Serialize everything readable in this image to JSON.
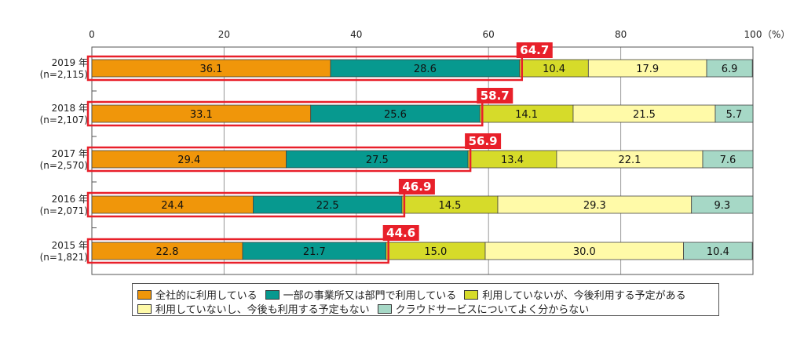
{
  "chart_data": {
    "type": "bar",
    "orientation": "horizontal",
    "stacked": true,
    "categories": [
      "2019 年\n(n=2,115)",
      "2018 年\n(n=2,107)",
      "2017 年\n(n=2,570)",
      "2016 年\n(n=2,071)",
      "2015 年\n(n=1,821)"
    ],
    "series": [
      {
        "name": "全社的に利用している",
        "color": "#F0960A",
        "values": [
          36.1,
          33.1,
          29.4,
          24.4,
          22.8
        ]
      },
      {
        "name": "一部の事業所又は部門で利用している",
        "color": "#07998F",
        "values": [
          28.6,
          25.6,
          27.5,
          22.5,
          21.7
        ]
      },
      {
        "name": "利用していないが、今後利用する予定がある",
        "color": "#D6DB2A",
        "values": [
          10.4,
          14.1,
          13.4,
          14.5,
          15.0
        ]
      },
      {
        "name": "利用していないし、今後も利用する予定もない",
        "color": "#FFFAA8",
        "values": [
          17.9,
          21.5,
          22.1,
          29.3,
          30.0
        ]
      },
      {
        "name": "クラウドサービスについてよく分からない",
        "color": "#A6D8C6",
        "values": [
          6.9,
          5.7,
          7.6,
          9.3,
          10.4
        ]
      }
    ],
    "highlight_totals": [
      "64.7",
      "58.7",
      "56.9",
      "46.9",
      "44.6"
    ],
    "x_ticks": [
      "0",
      "20",
      "40",
      "60",
      "80",
      "100"
    ],
    "x_unit": "（%）",
    "xlim": [
      0,
      100
    ],
    "highlight_color": "#E8202A",
    "legend_position": "bottom"
  }
}
